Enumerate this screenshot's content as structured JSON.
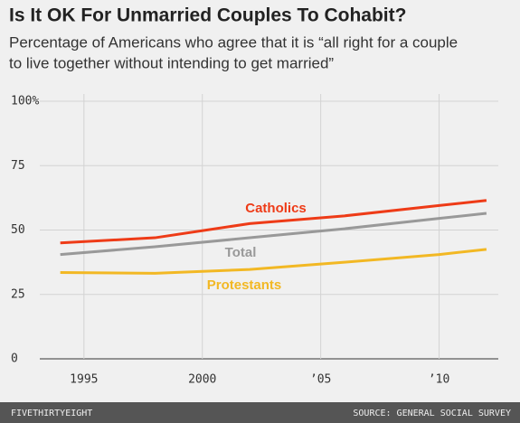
{
  "chart_data": {
    "type": "line",
    "title": "Is It OK For Unmarried Couples To Cohabit?",
    "subtitle": [
      "Percentage of Americans who agree that it is “all right for a couple",
      "to live together without intending to get married”"
    ],
    "x": [
      1994,
      1998,
      2002,
      2006,
      2010,
      2012
    ],
    "series": [
      {
        "name": "Catholics",
        "color": "#ee3b17",
        "values": [
          45,
          47,
          52.5,
          55.5,
          59.5,
          61.5
        ]
      },
      {
        "name": "Total",
        "color": "#999999",
        "values": [
          40.5,
          43.5,
          47,
          50.5,
          54.5,
          56.5
        ]
      },
      {
        "name": "Protestants",
        "color": "#f2b824",
        "values": [
          33.5,
          33.2,
          34.7,
          37.5,
          40.5,
          42.5
        ]
      }
    ],
    "xlim": [
      1992.6,
      2012.5
    ],
    "xticks": [
      1995,
      2000,
      {
        "value": 2005,
        "label": "’05"
      },
      {
        "value": 2010,
        "label": "’10"
      }
    ],
    "ylim": [
      0,
      100
    ],
    "yticks": [
      0,
      25,
      50,
      75,
      {
        "value": 100,
        "label": "100%"
      }
    ],
    "grid": true,
    "footer_left": "FIVETHIRTYEIGHT",
    "footer_right": "SOURCE: GENERAL SOCIAL SURVEY"
  }
}
